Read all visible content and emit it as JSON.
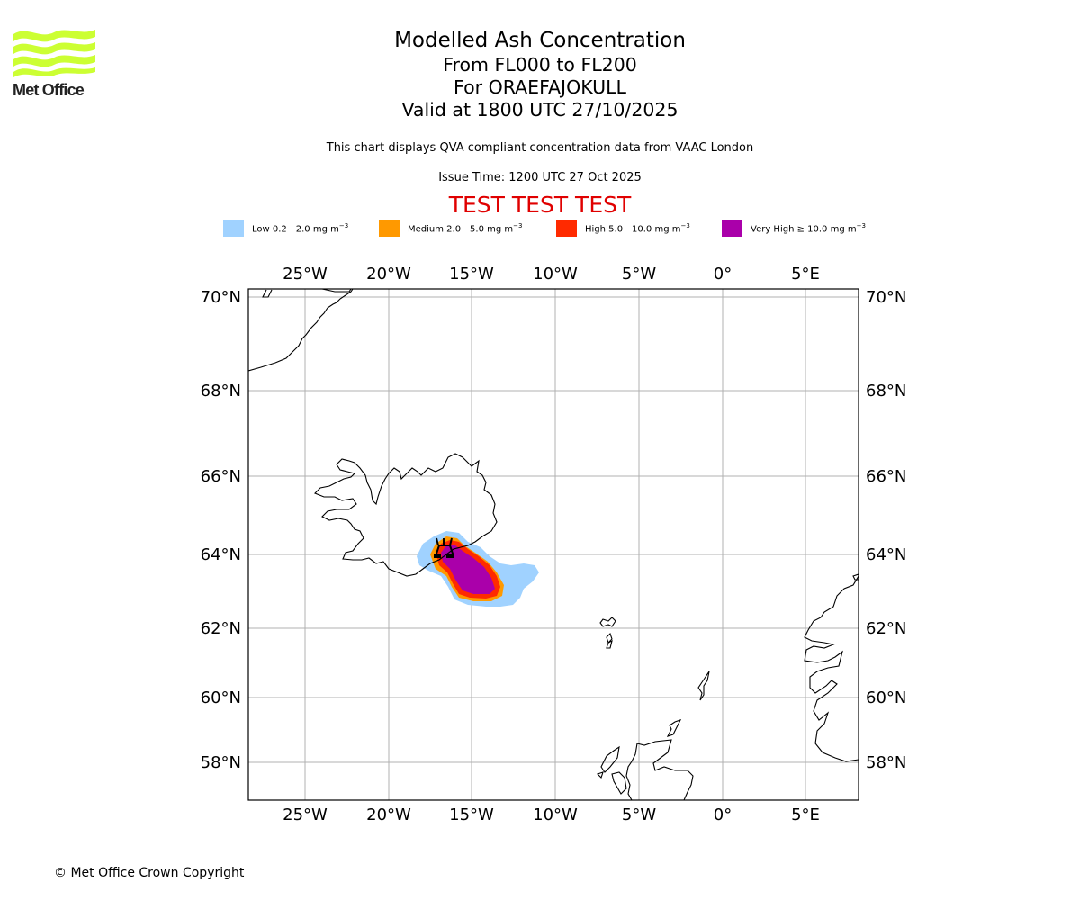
{
  "logo": {
    "name": "Met Office",
    "icon": "met-office-wave-logo",
    "color": "#ccff33"
  },
  "header": {
    "title": "Modelled Ash Concentration",
    "level_range": "From FL000 to FL200",
    "volcano": "For ORAEFAJOKULL",
    "valid_time": "Valid at 1800 UTC 27/10/2025",
    "description": "This chart displays QVA compliant concentration data from VAAC London",
    "issue_time": "Issue Time: 1200 UTC 27 Oct 2025",
    "test_banner": "TEST TEST TEST"
  },
  "legend": [
    {
      "label": "Low 0.2 - 2.0 mg m",
      "unit_exp": "−3",
      "color": "#a0d2ff"
    },
    {
      "label": "Medium 2.0 - 5.0 mg m",
      "unit_exp": "−3",
      "color": "#ff9900"
    },
    {
      "label": "High 5.0 - 10.0 mg m",
      "unit_exp": "−3",
      "color": "#ff2a00"
    },
    {
      "label": "Very High ≥ 10.0 mg m",
      "unit_exp": "−3",
      "color": "#aa00aa"
    }
  ],
  "map": {
    "extent": {
      "lon_min": -28.5,
      "lon_max": 8,
      "lat_min": 57,
      "lat_max": 70.2
    },
    "lon_ticks": [
      {
        "value": -25,
        "label": "25°W"
      },
      {
        "value": -20,
        "label": "20°W"
      },
      {
        "value": -15,
        "label": "15°W"
      },
      {
        "value": -10,
        "label": "10°W"
      },
      {
        "value": -5,
        "label": "5°W"
      },
      {
        "value": 0,
        "label": "0°"
      },
      {
        "value": 5,
        "label": "5°E"
      }
    ],
    "lat_ticks": [
      {
        "value": 70,
        "label": "70°N"
      },
      {
        "value": 68,
        "label": "68°N"
      },
      {
        "value": 66,
        "label": "66°N"
      },
      {
        "value": 64,
        "label": "64°N"
      },
      {
        "value": 62,
        "label": "62°N"
      },
      {
        "value": 60,
        "label": "60°N"
      },
      {
        "value": 58,
        "label": "58°N"
      }
    ],
    "volcano_marker": {
      "name": "ORAEFAJOKULL",
      "icon": "volcano-icon",
      "lat": 64.0,
      "lon": -16.6
    },
    "ash_cloud": {
      "location": "south-east of Iceland, extending from ~17.5°W to ~11°W, 62.8°N to 64.5°N",
      "levels": [
        "Low",
        "Medium",
        "High",
        "Very High"
      ]
    }
  },
  "footer": {
    "copyright": "© Met Office Crown Copyright"
  }
}
